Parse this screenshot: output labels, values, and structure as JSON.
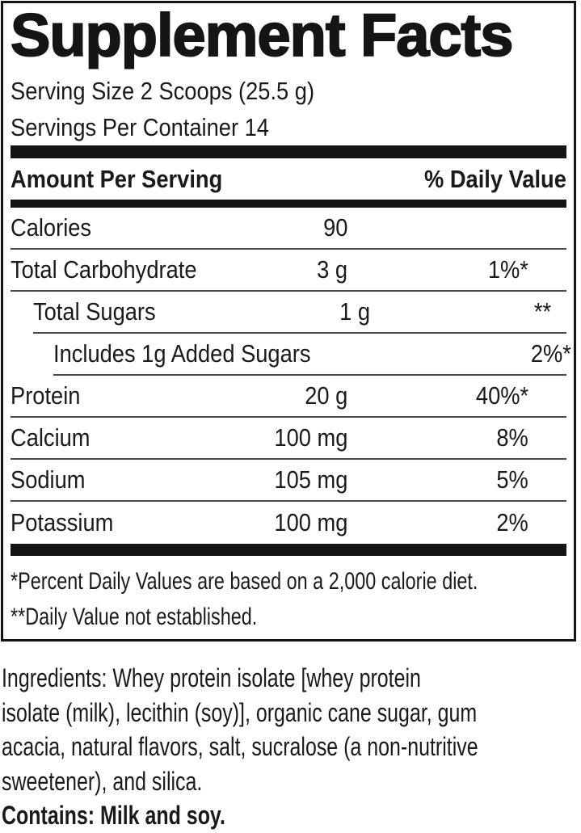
{
  "label": {
    "title": "Supplement Facts",
    "serving_size": "Serving Size 2 Scoops (25.5 g)",
    "servings_per_container": "Servings Per Container 14",
    "header": {
      "amount": "Amount Per Serving",
      "daily_value": "% Daily Value"
    },
    "rows": [
      {
        "label": "Calories",
        "amount": "90",
        "dv": "",
        "indent": 0
      },
      {
        "label": "Total Carbohydrate",
        "amount": "3 g",
        "dv": "1%*",
        "indent": 0
      },
      {
        "label": "Total Sugars",
        "amount": "1 g",
        "dv": "**",
        "indent": 1
      },
      {
        "label": "Includes 1g Added Sugars",
        "amount": "",
        "dv": "2%*",
        "indent": 2
      },
      {
        "label": "Protein",
        "amount": "20 g",
        "dv": "40%*",
        "indent": 0
      },
      {
        "label": "Calcium",
        "amount": "100 mg",
        "dv": "8%",
        "indent": 0
      },
      {
        "label": "Sodium",
        "amount": "105 mg",
        "dv": "5%",
        "indent": 0
      },
      {
        "label": "Potassium",
        "amount": "100 mg",
        "dv": "2%",
        "indent": 0
      }
    ],
    "footnotes": [
      "*Percent Daily Values are based on a 2,000 calorie diet.",
      "**Daily Value not established."
    ]
  },
  "ingredients": {
    "lines": [
      "Ingredients: Whey protein isolate [whey protein",
      "isolate (milk), lecithin (soy)], organic cane sugar, gum",
      "acacia, natural flavors, salt, sucralose (a non-nutritive",
      "sweetener), and silica."
    ],
    "contains": "Contains: Milk and soy."
  },
  "colors": {
    "text": "#1a1a1a",
    "bar": "#141414",
    "hairline": "#4a4a4a",
    "background": "#ffffff"
  }
}
